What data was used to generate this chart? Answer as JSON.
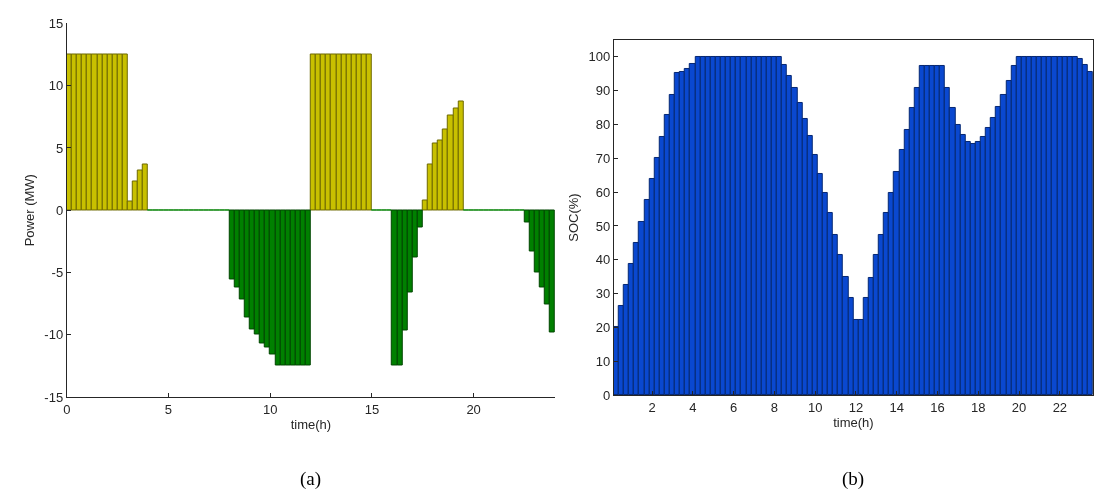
{
  "chart_data": [
    {
      "type": "bar",
      "xlabel": "time(h)",
      "ylabel": "Power (MW)",
      "annotations": [
        "(a)"
      ],
      "x": [
        0.125,
        0.375,
        0.625,
        0.875,
        1.125,
        1.375,
        1.625,
        1.875,
        2.125,
        2.375,
        2.625,
        2.875,
        3.125,
        3.375,
        3.625,
        3.875,
        4.125,
        4.375,
        4.625,
        4.875,
        5.125,
        5.375,
        5.625,
        5.875,
        6.125,
        6.375,
        6.625,
        6.875,
        7.125,
        7.375,
        7.625,
        7.875,
        8.125,
        8.375,
        8.625,
        8.875,
        9.125,
        9.375,
        9.625,
        9.875,
        10.125,
        10.375,
        10.625,
        10.875,
        11.125,
        11.375,
        11.625,
        11.875,
        12.125,
        12.375,
        12.625,
        12.875,
        13.125,
        13.375,
        13.625,
        13.875,
        14.125,
        14.375,
        14.625,
        14.875,
        15.125,
        15.375,
        15.625,
        15.875,
        16.125,
        16.375,
        16.625,
        16.875,
        17.125,
        17.375,
        17.625,
        17.875,
        18.125,
        18.375,
        18.625,
        18.875,
        19.125,
        19.375,
        19.625,
        19.875,
        20.125,
        20.375,
        20.625,
        20.875,
        21.125,
        21.375,
        21.625,
        21.875,
        22.125,
        22.375,
        22.625,
        22.875,
        23.125,
        23.375,
        23.625,
        23.875
      ],
      "series": [
        {
          "color": "#c8c000",
          "values": [
            12.5,
            12.5,
            12.5,
            12.5,
            12.5,
            12.5,
            12.5,
            12.5,
            12.5,
            12.5,
            12.5,
            12.5,
            0.7,
            2.3,
            3.2,
            3.7,
            null,
            null,
            null,
            null,
            null,
            null,
            null,
            null,
            null,
            null,
            null,
            null,
            null,
            null,
            null,
            null,
            null,
            null,
            null,
            null,
            null,
            null,
            null,
            null,
            null,
            null,
            null,
            null,
            null,
            null,
            null,
            null,
            12.5,
            12.5,
            12.5,
            12.5,
            12.5,
            12.5,
            12.5,
            12.5,
            12.5,
            12.5,
            12.5,
            12.5,
            null,
            null,
            null,
            null,
            null,
            null,
            null,
            null,
            null,
            null,
            0.8,
            3.7,
            5.4,
            5.6,
            6.5,
            7.6,
            8.2,
            8.7,
            null,
            null,
            null,
            null,
            null,
            null,
            null,
            null,
            null,
            null,
            null,
            null,
            null,
            null,
            null,
            null,
            null,
            null
          ]
        },
        {
          "color": "#008000",
          "values": [
            null,
            null,
            null,
            null,
            null,
            null,
            null,
            null,
            null,
            null,
            null,
            null,
            null,
            null,
            null,
            null,
            0,
            0,
            0,
            0,
            0,
            0,
            0,
            0,
            0,
            0,
            0,
            0,
            0,
            0,
            0,
            0,
            -5.6,
            -6.2,
            -7.2,
            -8.6,
            -9.6,
            -10.0,
            -10.7,
            -11.0,
            -11.6,
            -12.5,
            -12.5,
            -12.5,
            -12.5,
            -12.5,
            -12.5,
            -12.5,
            null,
            null,
            null,
            null,
            null,
            null,
            null,
            null,
            null,
            null,
            null,
            null,
            0,
            0,
            0,
            0,
            -12.5,
            -12.5,
            -9.7,
            -6.6,
            -3.8,
            -1.4,
            null,
            null,
            null,
            null,
            null,
            null,
            null,
            null,
            0,
            0,
            0,
            0,
            0,
            0,
            0,
            0,
            0,
            0,
            0,
            0,
            -1.0,
            -3.3,
            -5.0,
            -6.2,
            -7.6,
            -9.8
          ]
        }
      ],
      "xlim": [
        0,
        24
      ],
      "xticks": [
        0,
        5,
        10,
        15,
        20
      ],
      "ylim": [
        -15,
        15
      ],
      "yticks": [
        -15,
        -10,
        -5,
        0,
        5,
        10,
        15
      ]
    },
    {
      "type": "bar",
      "xlabel": "time(h)",
      "ylabel": "SOC(%)",
      "annotations": [
        "(b)"
      ],
      "x": [
        0.25,
        0.5,
        0.75,
        1.0,
        1.25,
        1.5,
        1.75,
        2.0,
        2.25,
        2.5,
        2.75,
        3.0,
        3.25,
        3.5,
        3.75,
        4.0,
        4.25,
        4.5,
        4.75,
        5.0,
        5.25,
        5.5,
        5.75,
        6.0,
        6.25,
        6.5,
        6.75,
        7.0,
        7.25,
        7.5,
        7.75,
        8.0,
        8.25,
        8.5,
        8.75,
        9.0,
        9.25,
        9.5,
        9.75,
        10.0,
        10.25,
        10.5,
        10.75,
        11.0,
        11.25,
        11.5,
        11.75,
        12.0,
        12.25,
        12.5,
        12.75,
        13.0,
        13.25,
        13.5,
        13.75,
        14.0,
        14.25,
        14.5,
        14.75,
        15.0,
        15.25,
        15.5,
        15.75,
        16.0,
        16.25,
        16.5,
        16.75,
        17.0,
        17.25,
        17.5,
        17.75,
        18.0,
        18.25,
        18.5,
        18.75,
        19.0,
        19.25,
        19.5,
        19.75,
        20.0,
        20.25,
        20.5,
        20.75,
        21.0,
        21.25,
        21.5,
        21.75,
        22.0,
        22.25,
        22.5,
        22.75,
        23.0,
        23.25,
        23.5
      ],
      "series": [
        {
          "color": "#0a48d0",
          "values": [
            20,
            26.2,
            32.5,
            38.8,
            45.1,
            51.3,
            57.6,
            63.8,
            70.2,
            76.2,
            82.7,
            88.7,
            95.2,
            95.5,
            96.5,
            98,
            100,
            100,
            100,
            100,
            100,
            100,
            100,
            100,
            100,
            100,
            100,
            100,
            100,
            100,
            100,
            100,
            100,
            97.5,
            94.3,
            90.7,
            86.4,
            81.5,
            76.5,
            71.1,
            65.5,
            59.9,
            53.8,
            47.3,
            41.3,
            34.9,
            28.6,
            22.3,
            22.3,
            28.6,
            34.7,
            41.3,
            47.3,
            53.8,
            59.9,
            65.9,
            72.4,
            78.4,
            84.9,
            90.9,
            97.3,
            97.3,
            97.3,
            97.3,
            97.3,
            90.9,
            84.9,
            80,
            76.8,
            74.8,
            74.3,
            74.7,
            76.2,
            78.9,
            81.8,
            85.1,
            88.6,
            92.9,
            97.3,
            100,
            100,
            100,
            100,
            100,
            100,
            100,
            100,
            100,
            100,
            100,
            100,
            99.5,
            97.7,
            95.5
          ]
        }
      ],
      "xlim": [
        0.125,
        23.625
      ],
      "xticks": [
        2,
        4,
        6,
        8,
        10,
        12,
        14,
        16,
        18,
        20,
        22
      ],
      "ylim": [
        0,
        105
      ],
      "yticks": [
        0,
        10,
        20,
        30,
        40,
        50,
        60,
        70,
        80,
        90,
        100
      ]
    }
  ]
}
